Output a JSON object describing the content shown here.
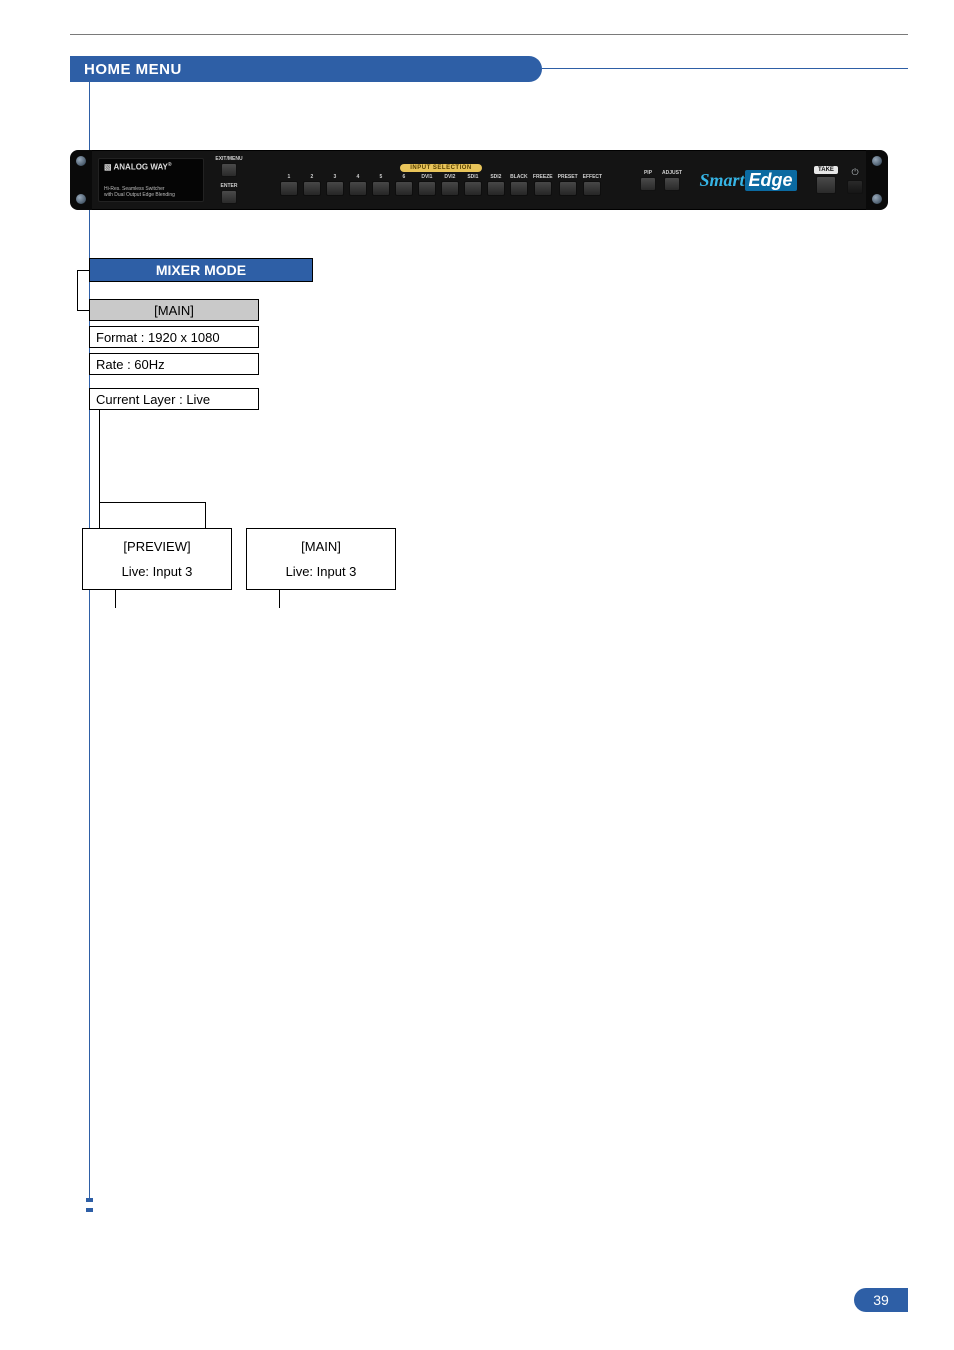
{
  "header": {
    "title": "HOME MENU"
  },
  "device": {
    "brand": "ANALOG WAY",
    "sub1": "Hi-Res. Seamless Switcher",
    "sub2": "with Dual Output Edge Blending",
    "exitmenu": "EXIT/MENU",
    "enter": "ENTER",
    "input_selection": "INPUT SELECTION",
    "inputs": [
      "1",
      "2",
      "3",
      "4",
      "5",
      "6",
      "DVI1",
      "DVI2",
      "SDI1",
      "SDI2",
      "BLACK",
      "FREEZE",
      "PRESET",
      "EFFECT"
    ],
    "pip": "PIP",
    "adjust": "ADJUST",
    "take": "TAKE",
    "logo_smart": "Smart",
    "logo_edge": "Edge"
  },
  "tree": {
    "mode": "MIXER MODE",
    "main": "[MAIN]",
    "format": "Format : 1920 x 1080",
    "rate": "Rate : 60Hz",
    "layer": "Current Layer : Live",
    "out1_title": "[PREVIEW]",
    "out1_live": "Live: Input 3",
    "out2_title": "[MAIN]",
    "out2_live": "Live: Input 3"
  },
  "page": {
    "number": "39"
  }
}
